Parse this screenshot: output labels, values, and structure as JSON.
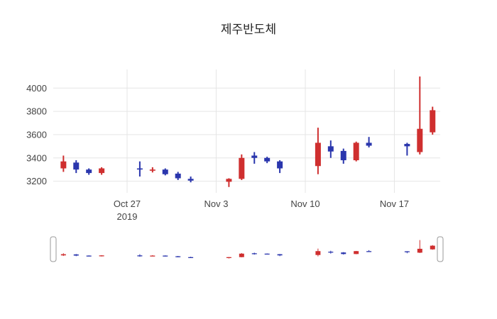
{
  "chart_data": {
    "type": "candlestick",
    "title": "제주반도체",
    "dates": [
      "2019-10-22",
      "2019-10-23",
      "2019-10-24",
      "2019-10-25",
      "2019-10-28",
      "2019-10-29",
      "2019-10-30",
      "2019-10-31",
      "2019-11-01",
      "2019-11-04",
      "2019-11-05",
      "2019-11-06",
      "2019-11-07",
      "2019-11-08",
      "2019-11-11",
      "2019-11-12",
      "2019-11-13",
      "2019-11-14",
      "2019-11-15",
      "2019-11-18",
      "2019-11-19",
      "2019-11-20"
    ],
    "x": [
      0,
      1,
      2,
      3,
      6,
      7,
      8,
      9,
      10,
      13,
      14,
      15,
      16,
      17,
      20,
      21,
      22,
      23,
      24,
      27,
      28,
      29
    ],
    "open": [
      3310,
      3360,
      3300,
      3270,
      3310,
      3290,
      3300,
      3265,
      3220,
      3195,
      3220,
      3420,
      3400,
      3370,
      3330,
      3500,
      3460,
      3380,
      3530,
      3520,
      3450,
      3620
    ],
    "high": [
      3420,
      3380,
      3310,
      3320,
      3370,
      3320,
      3310,
      3280,
      3240,
      3225,
      3430,
      3450,
      3410,
      3380,
      3660,
      3550,
      3480,
      3540,
      3580,
      3530,
      4100,
      3840
    ],
    "low": [
      3280,
      3270,
      3255,
      3255,
      3240,
      3275,
      3250,
      3210,
      3190,
      3150,
      3210,
      3350,
      3355,
      3270,
      3260,
      3400,
      3350,
      3370,
      3490,
      3420,
      3430,
      3600
    ],
    "close": [
      3370,
      3300,
      3270,
      3310,
      3300,
      3300,
      3260,
      3225,
      3205,
      3220,
      3400,
      3400,
      3370,
      3310,
      3530,
      3455,
      3380,
      3530,
      3505,
      3500,
      3650,
      3810
    ],
    "colors": {
      "increasing": "#cf2f2f",
      "decreasing": "#2a36ad"
    },
    "grid_color": "#e5e5e5",
    "axis_text_color": "#444444",
    "yticks": [
      3200,
      3400,
      3600,
      3800,
      4000
    ],
    "xticks": [
      {
        "x": 5,
        "label": "Oct 27",
        "sub": "2019"
      },
      {
        "x": 12,
        "label": "Nov 3",
        "sub": ""
      },
      {
        "x": 19,
        "label": "Nov 10",
        "sub": ""
      },
      {
        "x": 26,
        "label": "Nov 17",
        "sub": ""
      }
    ],
    "ylim": [
      3100,
      4160
    ],
    "xlim": [
      -0.8,
      29.6
    ],
    "legend": "none",
    "grid": "on",
    "rangeslider": true
  }
}
